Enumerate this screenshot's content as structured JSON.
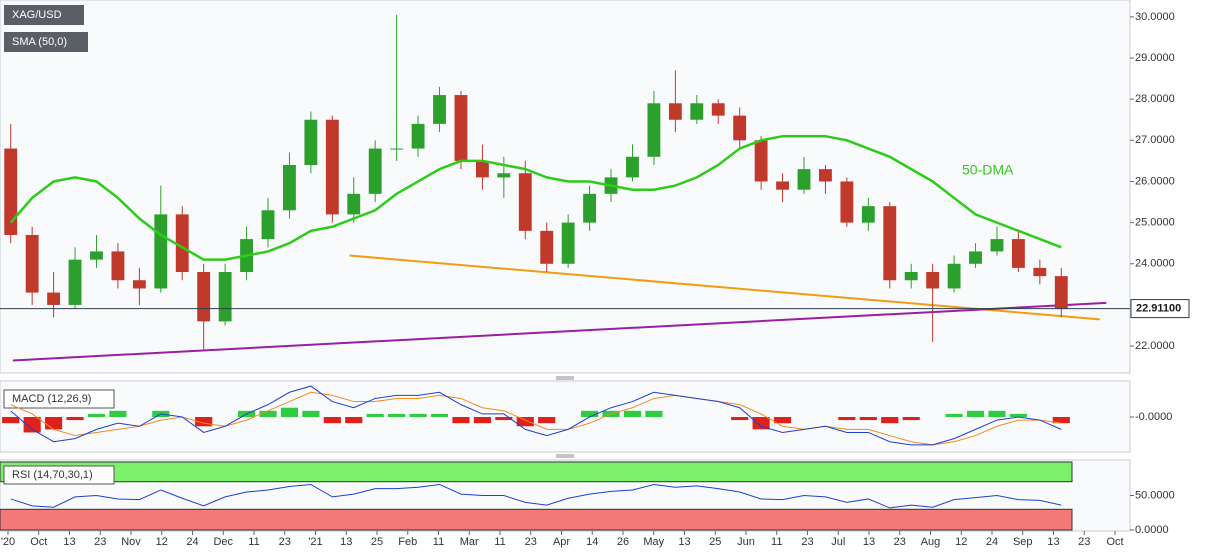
{
  "symbol": "XAG/USD",
  "indicator": "SMA (50,0)",
  "x_axis": {
    "labels": [
      "'20",
      "Oct",
      "13",
      "23",
      "Nov",
      "12",
      "24",
      "Dec",
      "11",
      "23",
      "'21",
      "13",
      "25",
      "Feb",
      "11",
      "Mar",
      "11",
      "23",
      "Apr",
      "14",
      "26",
      "May",
      "13",
      "25",
      "Jun",
      "11",
      "23",
      "Jul",
      "13",
      "23",
      "Aug",
      "12",
      "24",
      "Sep",
      "13",
      "23",
      "Oct"
    ]
  },
  "chart_data": [
    {
      "type": "candlestick",
      "open": [
        26.8,
        24.7,
        23.3,
        23.0,
        24.1,
        24.3,
        23.6,
        23.4,
        25.2,
        23.8,
        22.6,
        23.8,
        24.6,
        25.3,
        26.4,
        27.5,
        25.2,
        25.7,
        26.8,
        26.8,
        27.4,
        28.1,
        26.5,
        26.1,
        26.2,
        24.8,
        24.0,
        25.0,
        25.7,
        26.1,
        26.6,
        27.9,
        27.5,
        27.9,
        27.6,
        27.0,
        26.0,
        25.8,
        26.3,
        26.0,
        25.0,
        25.4,
        23.6,
        23.8,
        23.4,
        24.0,
        24.3,
        24.6,
        23.9,
        23.7
      ],
      "high": [
        27.4,
        24.9,
        23.8,
        24.4,
        24.7,
        24.5,
        23.9,
        25.9,
        25.4,
        24.0,
        24.0,
        24.9,
        25.6,
        26.7,
        27.7,
        27.6,
        26.1,
        27.0,
        30.05,
        27.6,
        28.3,
        28.2,
        26.9,
        26.6,
        26.5,
        25.0,
        25.2,
        25.9,
        26.3,
        26.9,
        28.2,
        28.7,
        28.1,
        28.0,
        27.8,
        27.1,
        26.2,
        26.6,
        26.4,
        26.1,
        25.6,
        25.5,
        24.0,
        24.0,
        24.2,
        24.5,
        24.9,
        24.8,
        24.1,
        23.9
      ],
      "low": [
        24.5,
        23.0,
        22.7,
        22.9,
        23.9,
        23.4,
        23.0,
        23.3,
        23.6,
        21.9,
        22.5,
        23.6,
        24.4,
        25.1,
        26.2,
        25.0,
        25.0,
        25.5,
        26.5,
        26.6,
        27.2,
        26.3,
        25.8,
        25.6,
        24.6,
        23.8,
        23.9,
        24.8,
        25.5,
        26.0,
        26.4,
        27.2,
        27.4,
        27.4,
        26.8,
        25.8,
        25.5,
        25.7,
        25.7,
        24.9,
        24.8,
        23.4,
        23.4,
        22.1,
        23.3,
        23.9,
        24.2,
        23.8,
        23.5,
        22.7
      ],
      "close": [
        24.7,
        23.3,
        23.0,
        24.1,
        24.3,
        23.6,
        23.4,
        25.2,
        23.8,
        22.6,
        23.8,
        24.6,
        25.3,
        26.4,
        27.5,
        25.2,
        25.7,
        26.8,
        26.8,
        27.4,
        28.1,
        26.5,
        26.1,
        26.2,
        24.8,
        24.0,
        25.0,
        25.7,
        26.1,
        26.6,
        27.9,
        27.5,
        27.9,
        27.6,
        27.0,
        26.0,
        25.8,
        26.3,
        26.0,
        25.0,
        25.4,
        23.6,
        23.8,
        23.4,
        24.0,
        24.3,
        24.6,
        23.9,
        23.7,
        22.9
      ],
      "up_color": "#2ca02c",
      "down_color": "#c0392b",
      "sma": {
        "name": "50-DMA",
        "color": "#2ecc1a",
        "values": [
          25.0,
          25.6,
          26.0,
          26.1,
          26.0,
          25.6,
          25.1,
          24.7,
          24.4,
          24.1,
          24.1,
          24.2,
          24.3,
          24.5,
          24.8,
          24.9,
          25.1,
          25.3,
          25.7,
          26.0,
          26.3,
          26.5,
          26.5,
          26.4,
          26.3,
          26.1,
          26.0,
          26.0,
          25.9,
          25.8,
          25.8,
          25.9,
          26.1,
          26.4,
          26.8,
          27.0,
          27.1,
          27.1,
          27.1,
          27.0,
          26.8,
          26.6,
          26.3,
          26.0,
          25.6,
          25.2,
          25.0,
          24.8,
          24.6,
          24.4
        ]
      },
      "trendlines": [
        {
          "color": "#f39c12",
          "from": [
            16.3,
            24.2
          ],
          "to": [
            51.3,
            22.65
          ]
        },
        {
          "color": "#9b1fa0",
          "from": [
            0.6,
            21.65
          ],
          "to": [
            51.6,
            23.05
          ]
        }
      ],
      "last_price": {
        "value": 22.911,
        "label": "22.91100"
      },
      "ylim": [
        21.37,
        30.41
      ],
      "yticks": [
        {
          "value": 22,
          "label": "22.0000"
        },
        {
          "value": 23,
          "label": "23.0000"
        },
        {
          "value": 24,
          "label": "24.0000"
        },
        {
          "value": 25,
          "label": "25.0000"
        },
        {
          "value": 26,
          "label": "26.0000"
        },
        {
          "value": 27,
          "label": "27.0000"
        },
        {
          "value": 28,
          "label": "28.0000"
        },
        {
          "value": 29,
          "label": "29.0000"
        },
        {
          "value": 30,
          "label": "30.0000"
        }
      ]
    },
    {
      "type": "macd",
      "title": "MACD (12,26,9)",
      "histogram": [
        -0.2,
        -0.5,
        -0.4,
        -0.1,
        0.1,
        0.2,
        0.0,
        0.2,
        0.0,
        -0.3,
        0.0,
        0.2,
        0.2,
        0.3,
        0.2,
        -0.2,
        -0.2,
        0.1,
        0.1,
        0.1,
        0.1,
        -0.2,
        -0.2,
        -0.1,
        -0.3,
        -0.2,
        0.0,
        0.2,
        0.2,
        0.2,
        0.2,
        0.0,
        0.0,
        0.0,
        -0.1,
        -0.4,
        -0.2,
        0.0,
        0.0,
        -0.1,
        -0.1,
        -0.2,
        -0.1,
        0.0,
        0.1,
        0.2,
        0.2,
        0.1,
        0.0,
        -0.2
      ],
      "macd": [
        0.2,
        -0.4,
        -0.8,
        -0.7,
        -0.4,
        -0.2,
        -0.3,
        0.1,
        0.0,
        -0.5,
        -0.3,
        0.1,
        0.4,
        0.8,
        1.0,
        0.5,
        0.3,
        0.6,
        0.7,
        0.7,
        0.8,
        0.4,
        0.1,
        0.1,
        -0.4,
        -0.6,
        -0.4,
        0.0,
        0.3,
        0.5,
        0.8,
        0.7,
        0.6,
        0.5,
        0.3,
        -0.3,
        -0.5,
        -0.4,
        -0.3,
        -0.5,
        -0.5,
        -0.8,
        -0.9,
        -0.9,
        -0.7,
        -0.4,
        -0.1,
        0.0,
        -0.1,
        -0.4
      ],
      "signal": [
        0.4,
        0.1,
        -0.4,
        -0.6,
        -0.5,
        -0.4,
        -0.3,
        -0.1,
        0.0,
        -0.2,
        -0.3,
        -0.1,
        0.2,
        0.5,
        0.8,
        0.7,
        0.5,
        0.5,
        0.6,
        0.6,
        0.7,
        0.6,
        0.3,
        0.2,
        -0.1,
        -0.4,
        -0.4,
        -0.2,
        0.1,
        0.3,
        0.6,
        0.7,
        0.6,
        0.5,
        0.4,
        0.1,
        -0.3,
        -0.4,
        -0.3,
        -0.4,
        -0.4,
        -0.6,
        -0.8,
        -0.9,
        -0.8,
        -0.6,
        -0.3,
        -0.1,
        -0.1,
        -0.2
      ],
      "macd_color": "#1f3fd1",
      "signal_color": "#f08a24",
      "pos_color": "#2ecc40",
      "neg_color": "#e0201b",
      "ylim": [
        -1.1,
        1.1
      ],
      "yticks": [
        {
          "value": 0,
          "label": "-0.0000"
        }
      ]
    },
    {
      "type": "rsi",
      "title": "RSI (14,70,30,1)",
      "values": [
        45,
        35,
        33,
        48,
        50,
        45,
        44,
        58,
        46,
        35,
        48,
        55,
        58,
        63,
        66,
        48,
        52,
        60,
        60,
        62,
        66,
        52,
        50,
        50,
        40,
        36,
        46,
        52,
        56,
        58,
        66,
        62,
        64,
        60,
        55,
        45,
        44,
        50,
        48,
        40,
        45,
        32,
        36,
        33,
        44,
        47,
        50,
        44,
        43,
        36
      ],
      "color": "#1f3fd1",
      "upper": 70,
      "lower": 30,
      "upper_color": "#7cf26a",
      "lower_color": "#f47a7a",
      "ylim": [
        0,
        100
      ],
      "yticks": [
        {
          "value": 0,
          "label": "0.0000"
        },
        {
          "value": 50,
          "label": "50.0000"
        }
      ]
    }
  ]
}
